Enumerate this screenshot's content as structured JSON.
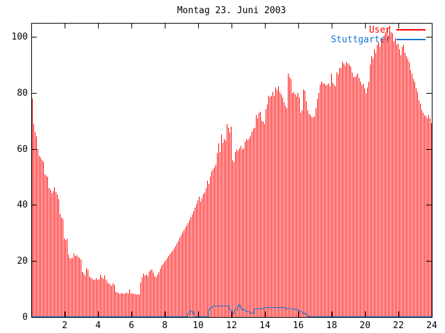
{
  "title": "Montag 23. Juni 2003",
  "legend": {
    "entries": [
      {
        "label": "User",
        "color": "#ff0000"
      },
      {
        "label": "Stuttgarter",
        "color": "#1274d2"
      }
    ]
  },
  "axes": {
    "x_tick_labels": [
      2,
      4,
      6,
      8,
      10,
      12,
      14,
      16,
      18,
      20,
      22,
      24
    ],
    "y_tick_labels": [
      0,
      20,
      40,
      60,
      80,
      100
    ]
  },
  "colors": {
    "background": "#ffffff",
    "border": "#000000",
    "user_series": "#ff0000",
    "stuttgarter_series": "#1274d2",
    "text": "#000000"
  },
  "chart_data": {
    "type": "bar",
    "title": "Montag 23. Juni 2003",
    "xlabel": "",
    "ylabel": "",
    "x_range": [
      0,
      24
    ],
    "y_range": [
      0,
      105
    ],
    "grid": false,
    "legend_position": "top-right-inside",
    "series": [
      {
        "name": "User",
        "style": "impulses",
        "color": "#ff0000",
        "interval_minutes": 5,
        "values": [
          78,
          69,
          66,
          64.5,
          60,
          57.5,
          57,
          56,
          55.5,
          51,
          50.5,
          50,
          46,
          45.5,
          44.2,
          44.9,
          46.3,
          44.6,
          43.7,
          42.1,
          36.8,
          35.5,
          35.1,
          28.1,
          27.5,
          27.8,
          22.3,
          21.1,
          20.9,
          21,
          22.6,
          21.8,
          22,
          21.4,
          21,
          20.6,
          16.1,
          15.5,
          14.9,
          17.4,
          16.8,
          14.5,
          14,
          13.7,
          13.3,
          13.4,
          13.9,
          13.3,
          13.5,
          15.1,
          14.3,
          13.6,
          14.9,
          13.4,
          12.4,
          12,
          11.6,
          11.2,
          12,
          11.5,
          9.1,
          8.8,
          8.5,
          8.3,
          8.6,
          8.4,
          8.3,
          8.5,
          8.7,
          8.4,
          9.9,
          8.6,
          8.3,
          8.4,
          8.2,
          8,
          8.2,
          8.1,
          12.4,
          14.3,
          15.5,
          14.8,
          15.2,
          14.6,
          16.2,
          16.8,
          17,
          15.9,
          14.6,
          14.3,
          15.1,
          16,
          17.2,
          18.3,
          19,
          19.7,
          20.3,
          21,
          21.8,
          22.5,
          23.1,
          23.8,
          24.5,
          25.3,
          26.2,
          27.2,
          28.2,
          29.2,
          30.2,
          31,
          31.8,
          32.7,
          33.6,
          34.6,
          35.6,
          36.7,
          37.8,
          39,
          40.3,
          41.6,
          43,
          41.2,
          42.5,
          44,
          44.5,
          46,
          48.6,
          47.5,
          50.2,
          52,
          52.7,
          53.5,
          54.4,
          58.5,
          62,
          58.9,
          65.1,
          62.2,
          63.5,
          63,
          68.8,
          67.6,
          65.9,
          68,
          56,
          55.3,
          58.9,
          59.8,
          59.3,
          60.2,
          61,
          59.8,
          60.2,
          62.7,
          63.5,
          63.1,
          63.9,
          64.7,
          66.3,
          67.2,
          67.6,
          72.1,
          70.9,
          72.9,
          73.3,
          70.1,
          69.7,
          68.9,
          74.2,
          75.9,
          79,
          78.5,
          79,
          80.3,
          79,
          82,
          81,
          82.4,
          80.3,
          79.5,
          78.3,
          76.6,
          75.4,
          74.6,
          86.9,
          85.7,
          84.9,
          80,
          80.3,
          79.5,
          78.7,
          80,
          78.4,
          72.9,
          73.8,
          81.2,
          80.8,
          77,
          73.8,
          72.5,
          72.1,
          71.5,
          71.2,
          71.7,
          74.6,
          77.9,
          80,
          83,
          84.1,
          83.5,
          83.3,
          82.8,
          82.8,
          83.3,
          82.4,
          86.9,
          83.7,
          83,
          82.4,
          87.3,
          86.5,
          88.9,
          88.9,
          91,
          90.5,
          89.8,
          91,
          90.5,
          90,
          89.4,
          87.3,
          85.7,
          85.7,
          86.1,
          86.9,
          85.3,
          84.1,
          82.8,
          83.2,
          81.6,
          79.9,
          82,
          84,
          90.2,
          93.1,
          92.3,
          95.6,
          94.3,
          97.2,
          98,
          96.4,
          99.3,
          99.3,
          100.5,
          101.7,
          103,
          100.5,
          104,
          101.7,
          101.3,
          98.4,
          99.7,
          97.2,
          97.6,
          95.6,
          93.5,
          96.4,
          97.2,
          94.3,
          93.1,
          92.3,
          91,
          88.1,
          86.9,
          84.9,
          84,
          81.6,
          80.3,
          77.4,
          76.2,
          74.1,
          72.9,
          72.1,
          71.7,
          70.9,
          72.1,
          70.9,
          69.2
        ]
      },
      {
        "name": "Stuttgarter",
        "style": "steps",
        "color": "#1274d2",
        "step_points": [
          [
            0,
            0
          ],
          [
            9.38,
            1.3
          ],
          [
            9.5,
            2.1
          ],
          [
            9.67,
            1.2
          ],
          [
            9.79,
            0
          ],
          [
            10.63,
            2.5
          ],
          [
            10.71,
            3.2
          ],
          [
            10.88,
            3.8
          ],
          [
            11.88,
            2.4
          ],
          [
            12.0,
            1.3
          ],
          [
            12.21,
            2.5
          ],
          [
            12.33,
            3.7
          ],
          [
            12.42,
            4.2
          ],
          [
            12.5,
            3.3
          ],
          [
            12.58,
            2.5
          ],
          [
            12.83,
            1.9
          ],
          [
            13.08,
            1.3
          ],
          [
            13.38,
            2.9
          ],
          [
            13.96,
            3.2
          ],
          [
            15.25,
            2.9
          ],
          [
            15.79,
            2.5
          ],
          [
            16.04,
            1.9
          ],
          [
            16.25,
            1.3
          ],
          [
            16.46,
            0.6
          ],
          [
            16.58,
            0
          ]
        ]
      }
    ]
  }
}
